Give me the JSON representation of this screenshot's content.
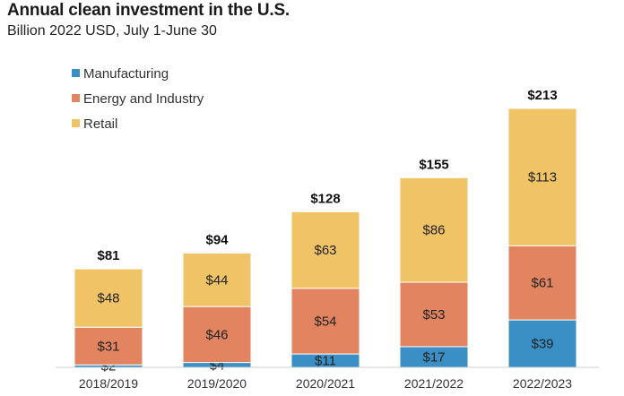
{
  "chart_data": {
    "type": "bar",
    "stacked": true,
    "title": "Annual clean investment in the U.S.",
    "subtitle": "Billion 2022 USD, July 1-June 30",
    "categories": [
      "2018/2019",
      "2019/2020",
      "2020/2021",
      "2021/2022",
      "2022/2023"
    ],
    "series": [
      {
        "name": "Manufacturing",
        "color": "#3a8fc4",
        "values": [
          2,
          4,
          11,
          17,
          39
        ],
        "labels": [
          "$2",
          "$4",
          "$11",
          "$17",
          "$39"
        ]
      },
      {
        "name": "Energy and Industry",
        "color": "#e1845f",
        "values": [
          31,
          46,
          54,
          53,
          61
        ],
        "labels": [
          "$31",
          "$46",
          "$54",
          "$53",
          "$61"
        ]
      },
      {
        "name": "Retail",
        "color": "#efc366",
        "values": [
          48,
          44,
          63,
          86,
          113
        ],
        "labels": [
          "$48",
          "$44",
          "$63",
          "$86",
          "$113"
        ]
      }
    ],
    "totals": [
      81,
      94,
      128,
      155,
      213
    ],
    "total_labels": [
      "$81",
      "$94",
      "$128",
      "$155",
      "$213"
    ],
    "legend_position": "top-left",
    "grid": false,
    "ylim": [
      0,
      213
    ]
  }
}
